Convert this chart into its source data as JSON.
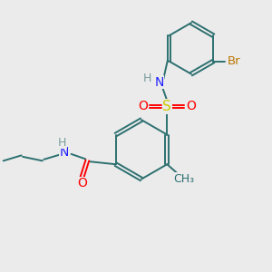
{
  "background_color": "#ebebeb",
  "bond_color": "#2d7070",
  "atom_colors": {
    "N": "#2020ff",
    "O": "#ff0000",
    "S": "#cccc00",
    "Br": "#bb7700",
    "C": "#2d7070",
    "H": "#7a9e9e"
  },
  "figsize": [
    3.0,
    3.0
  ],
  "dpi": 100
}
